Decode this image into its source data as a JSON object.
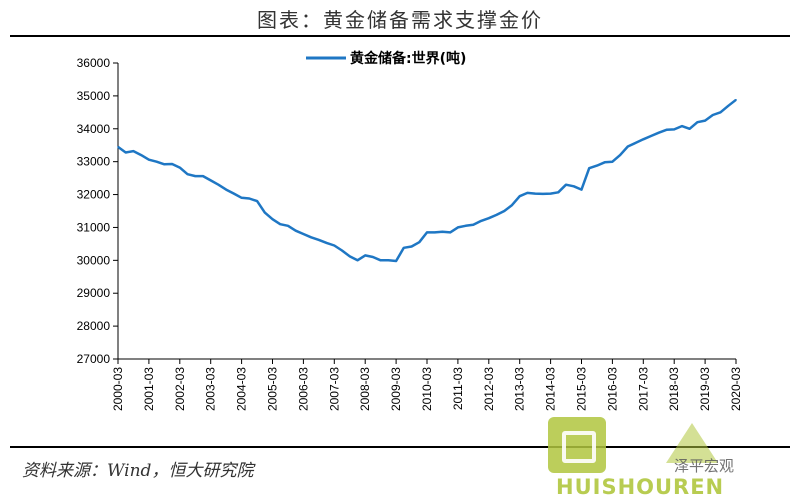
{
  "title": "图表：黄金储备需求支撑金价",
  "source": "资料来源：Wind，恒大研究院",
  "watermark": {
    "brand": "HUISHOUREN",
    "author": "泽平宏观",
    "color": "#b0c63e"
  },
  "chart_data": {
    "type": "line",
    "title": "图表：黄金储备需求支撑金价",
    "xlabel": "",
    "ylabel": "",
    "legend_position": "top-center",
    "grid": false,
    "ylim": [
      27000,
      36000
    ],
    "yticks": [
      27000,
      28000,
      29000,
      30000,
      31000,
      32000,
      33000,
      34000,
      35000,
      36000
    ],
    "xticks": [
      "2000-03",
      "2001-03",
      "2002-03",
      "2003-03",
      "2004-03",
      "2005-03",
      "2006-03",
      "2007-03",
      "2008-03",
      "2009-03",
      "2010-03",
      "2011-03",
      "2012-03",
      "2013-03",
      "2014-03",
      "2015-03",
      "2016-03",
      "2017-03",
      "2018-03",
      "2019-03",
      "2020-03"
    ],
    "line_color": "#1f77c4",
    "series": [
      {
        "name": "黄金储备:世界(吨)",
        "x": [
          "2000-03",
          "2000-06",
          "2000-09",
          "2000-12",
          "2001-03",
          "2001-06",
          "2001-09",
          "2001-12",
          "2002-03",
          "2002-06",
          "2002-09",
          "2002-12",
          "2003-03",
          "2003-06",
          "2003-09",
          "2003-12",
          "2004-03",
          "2004-06",
          "2004-09",
          "2004-12",
          "2005-03",
          "2005-06",
          "2005-09",
          "2005-12",
          "2006-03",
          "2006-06",
          "2006-09",
          "2006-12",
          "2007-03",
          "2007-06",
          "2007-09",
          "2007-12",
          "2008-03",
          "2008-06",
          "2008-09",
          "2008-12",
          "2009-03",
          "2009-06",
          "2009-09",
          "2009-12",
          "2010-03",
          "2010-06",
          "2010-09",
          "2010-12",
          "2011-03",
          "2011-06",
          "2011-09",
          "2011-12",
          "2012-03",
          "2012-06",
          "2012-09",
          "2012-12",
          "2013-03",
          "2013-06",
          "2013-09",
          "2013-12",
          "2014-03",
          "2014-06",
          "2014-09",
          "2014-12",
          "2015-03",
          "2015-06",
          "2015-09",
          "2015-12",
          "2016-03",
          "2016-06",
          "2016-09",
          "2016-12",
          "2017-03",
          "2017-06",
          "2017-09",
          "2017-12",
          "2018-03",
          "2018-06",
          "2018-09",
          "2018-12",
          "2019-03",
          "2019-06",
          "2019-09",
          "2019-12",
          "2020-03"
        ],
        "values": [
          33450,
          33280,
          33320,
          33200,
          33060,
          33000,
          32920,
          32930,
          32820,
          32620,
          32560,
          32560,
          32430,
          32300,
          32150,
          32030,
          31900,
          31880,
          31800,
          31450,
          31250,
          31100,
          31050,
          30900,
          30800,
          30700,
          30620,
          30530,
          30450,
          30300,
          30120,
          30000,
          30150,
          30100,
          30000,
          30000,
          29980,
          30380,
          30420,
          30550,
          30850,
          30850,
          30870,
          30850,
          31000,
          31050,
          31080,
          31200,
          31280,
          31380,
          31500,
          31680,
          31950,
          32050,
          32030,
          32020,
          32030,
          32070,
          32300,
          32250,
          32150,
          32800,
          32880,
          32980,
          33000,
          33200,
          33460,
          33570,
          33680,
          33780,
          33880,
          33970,
          33980,
          34080,
          34000,
          34200,
          34250,
          34420,
          34500,
          34700,
          34880
        ]
      }
    ]
  }
}
